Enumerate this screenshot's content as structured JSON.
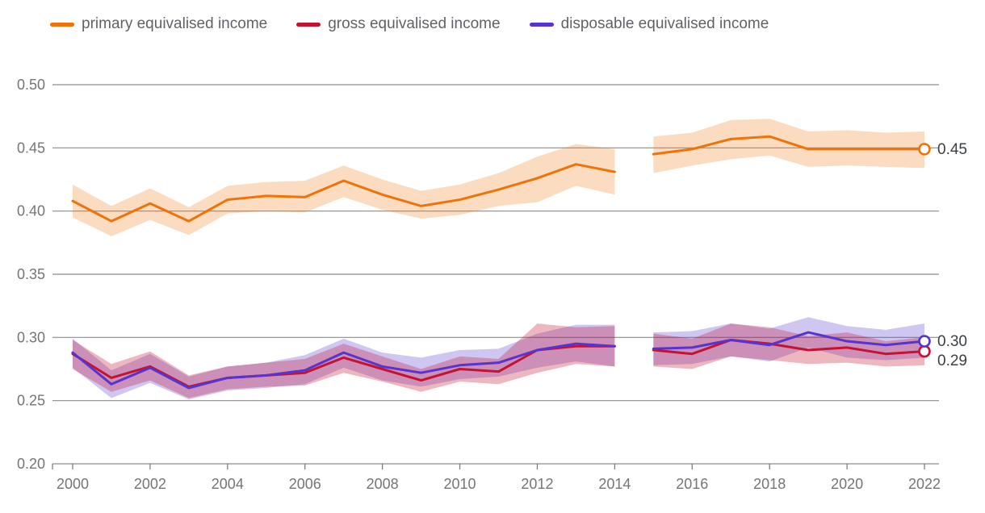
{
  "legend": {
    "items": [
      {
        "label": "primary equivalised income",
        "color": "#ee7309"
      },
      {
        "label": "gross equivalised income",
        "color": "#c41230"
      },
      {
        "label": "disposable equivalised income",
        "color": "#5733cf"
      }
    ]
  },
  "chart_data": {
    "type": "line",
    "title": "",
    "xlabel": "",
    "ylabel": "",
    "x": [
      2000,
      2001,
      2002,
      2003,
      2004,
      2005,
      2006,
      2007,
      2008,
      2009,
      2010,
      2011,
      2012,
      2013,
      2014,
      2015,
      2016,
      2017,
      2018,
      2019,
      2020,
      2021,
      2022
    ],
    "gap_after": 2014,
    "xticks": [
      2000,
      2002,
      2004,
      2006,
      2008,
      2010,
      2012,
      2014,
      2016,
      2018,
      2020,
      2022
    ],
    "ylim": [
      0.2,
      0.5
    ],
    "yticks": [
      0.2,
      0.25,
      0.3,
      0.35,
      0.4,
      0.45,
      0.5
    ],
    "ytick_labels": [
      "0.20",
      "0.25",
      "0.30",
      "0.35",
      "0.40",
      "0.45",
      "0.50"
    ],
    "grid": "horizontal",
    "legend_position": "top-left",
    "style": {
      "grid_color": "#8e8e8e",
      "tick_text_color": "#757575",
      "end_label_color": "#3c4043"
    },
    "series": [
      {
        "name": "primary equivalised income",
        "color": "#ee7309",
        "band_opacity": 0.25,
        "end_label": "0.45",
        "values": [
          0.408,
          0.392,
          0.406,
          0.392,
          0.409,
          0.412,
          0.411,
          0.424,
          0.413,
          0.404,
          0.409,
          0.417,
          0.426,
          0.437,
          0.431,
          0.445,
          0.449,
          0.457,
          0.459,
          0.449,
          0.449,
          0.449,
          0.449
        ],
        "upper": [
          0.421,
          0.404,
          0.418,
          0.403,
          0.42,
          0.423,
          0.424,
          0.436,
          0.425,
          0.416,
          0.421,
          0.43,
          0.443,
          0.453,
          0.449,
          0.459,
          0.462,
          0.472,
          0.473,
          0.463,
          0.464,
          0.462,
          0.463
        ],
        "lower": [
          0.395,
          0.38,
          0.393,
          0.381,
          0.398,
          0.4,
          0.399,
          0.411,
          0.401,
          0.394,
          0.397,
          0.404,
          0.407,
          0.42,
          0.413,
          0.43,
          0.436,
          0.441,
          0.444,
          0.435,
          0.436,
          0.435,
          0.434
        ]
      },
      {
        "name": "gross equivalised income",
        "color": "#c41230",
        "band_opacity": 0.3,
        "end_label": "0.29",
        "values": [
          0.287,
          0.268,
          0.277,
          0.261,
          0.268,
          0.27,
          0.272,
          0.284,
          0.275,
          0.266,
          0.275,
          0.273,
          0.29,
          0.293,
          0.293,
          0.29,
          0.287,
          0.298,
          0.295,
          0.29,
          0.292,
          0.287,
          0.289
        ],
        "upper": [
          0.298,
          0.279,
          0.289,
          0.27,
          0.277,
          0.28,
          0.283,
          0.295,
          0.285,
          0.275,
          0.285,
          0.283,
          0.311,
          0.308,
          0.309,
          0.303,
          0.299,
          0.311,
          0.308,
          0.301,
          0.304,
          0.297,
          0.3
        ],
        "lower": [
          0.275,
          0.257,
          0.266,
          0.252,
          0.259,
          0.261,
          0.262,
          0.272,
          0.265,
          0.257,
          0.265,
          0.263,
          0.272,
          0.279,
          0.277,
          0.277,
          0.275,
          0.285,
          0.282,
          0.279,
          0.28,
          0.277,
          0.278
        ]
      },
      {
        "name": "disposable equivalised income",
        "color": "#5733cf",
        "band_opacity": 0.28,
        "end_label": "0.30",
        "values": [
          0.288,
          0.263,
          0.276,
          0.26,
          0.268,
          0.27,
          0.274,
          0.288,
          0.277,
          0.272,
          0.278,
          0.28,
          0.29,
          0.295,
          0.293,
          0.291,
          0.292,
          0.298,
          0.294,
          0.304,
          0.297,
          0.294,
          0.297
        ],
        "upper": [
          0.299,
          0.274,
          0.287,
          0.269,
          0.277,
          0.28,
          0.286,
          0.299,
          0.288,
          0.284,
          0.29,
          0.291,
          0.303,
          0.31,
          0.31,
          0.304,
          0.305,
          0.311,
          0.307,
          0.316,
          0.309,
          0.306,
          0.311
        ],
        "lower": [
          0.276,
          0.252,
          0.264,
          0.251,
          0.258,
          0.26,
          0.263,
          0.276,
          0.266,
          0.261,
          0.267,
          0.269,
          0.276,
          0.281,
          0.277,
          0.278,
          0.279,
          0.285,
          0.281,
          0.292,
          0.284,
          0.282,
          0.284
        ]
      }
    ]
  }
}
